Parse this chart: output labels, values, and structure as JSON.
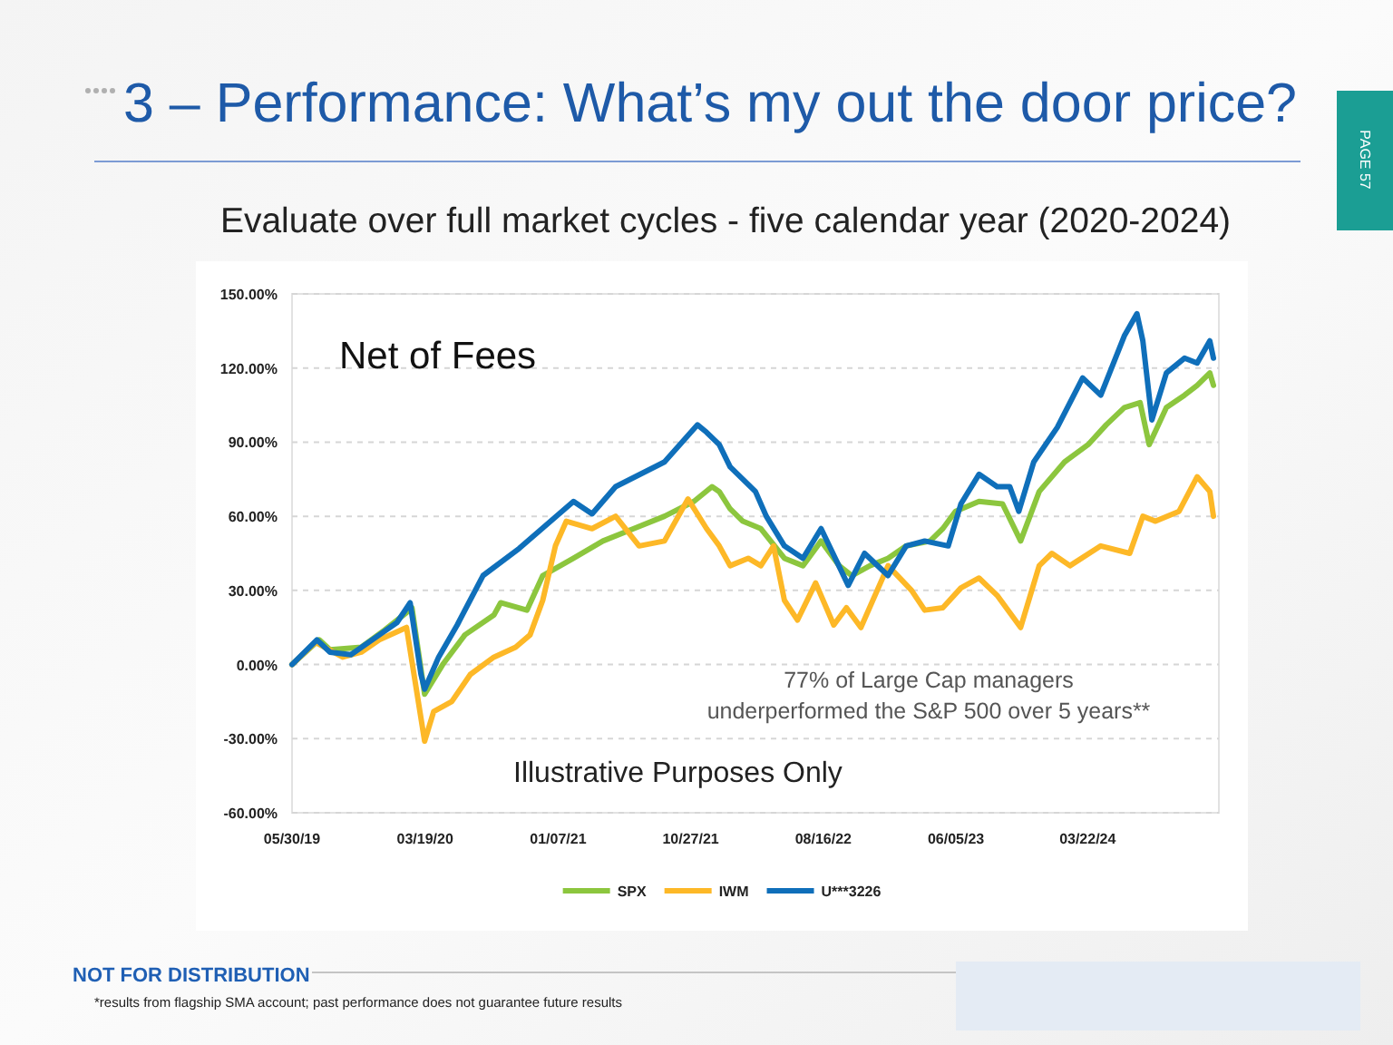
{
  "chart_data": {
    "type": "line",
    "title": "3 – Performance: What’s my out the door price?",
    "subtitle": "Evaluate over full market cycles - five calendar year (2020-2024)",
    "annotations": [
      "Net of Fees",
      "77% of Large Cap managers\nunderperformed the S&P 500 over 5 years**",
      "Illustrative Purposes Only",
      "NOT FOR DISTRIBUTION",
      "*results from flagship SMA account; past performance does not guarantee future results",
      "PAGE 57"
    ],
    "xlim": [
      "2019-05-30",
      "2025-01-06"
    ],
    "xticks": [
      {
        "value": "2019-05-30",
        "label": "05/30/19"
      },
      {
        "value": "2020-03-19",
        "label": "03/19/20"
      },
      {
        "value": "2021-01-07",
        "label": "01/07/21"
      },
      {
        "value": "2021-10-27",
        "label": "10/27/21"
      },
      {
        "value": "2022-08-16",
        "label": "08/16/22"
      },
      {
        "value": "2023-06-05",
        "label": "06/05/23"
      },
      {
        "value": "2024-03-22",
        "label": "03/22/24"
      }
    ],
    "ylim": [
      -60,
      150
    ],
    "yticks": [
      {
        "value": -60,
        "label": "-60.00%"
      },
      {
        "value": -30,
        "label": "-30.00%"
      },
      {
        "value": 0,
        "label": "0.00%"
      },
      {
        "value": 30,
        "label": "30.00%"
      },
      {
        "value": 60,
        "label": "60.00%"
      },
      {
        "value": 90,
        "label": "90.00%"
      },
      {
        "value": 120,
        "label": "120.00%"
      },
      {
        "value": 150,
        "label": "150.00%"
      }
    ],
    "grid": "y",
    "legend": "bottom",
    "series": [
      {
        "name": "SPX",
        "color": "#8cc63e",
        "x": [
          "2019-05-30",
          "2019-07-29",
          "2019-08-22",
          "2019-10-30",
          "2019-12-21",
          "2020-02-07",
          "2020-02-19",
          "2020-03-18",
          "2020-04-27",
          "2020-06-15",
          "2020-08-18",
          "2020-09-02",
          "2020-10-30",
          "2020-12-04",
          "2021-02-10",
          "2021-04-16",
          "2021-06-23",
          "2021-08-30",
          "2021-11-03",
          "2021-12-13",
          "2021-12-29",
          "2022-01-22",
          "2022-02-19",
          "2022-03-31",
          "2022-05-22",
          "2022-07-02",
          "2022-08-11",
          "2022-09-20",
          "2022-10-18",
          "2022-11-27",
          "2023-01-06",
          "2023-02-15",
          "2023-04-09",
          "2023-05-07",
          "2023-06-04",
          "2023-07-26",
          "2023-09-16",
          "2023-10-26",
          "2023-12-06",
          "2024-01-31",
          "2024-03-23",
          "2024-05-02",
          "2024-06-11",
          "2024-07-16",
          "2024-08-05",
          "2024-09-12",
          "2024-10-22",
          "2024-11-19",
          "2024-12-17",
          "2024-12-25"
        ],
        "values": [
          0,
          10,
          6,
          7,
          14,
          21,
          23,
          -12,
          0,
          12,
          20,
          25,
          22,
          36,
          43,
          50,
          55,
          60,
          66,
          72,
          70,
          63,
          58,
          55,
          43,
          40,
          50,
          40,
          36,
          40,
          43,
          48,
          50,
          55,
          62,
          66,
          65,
          50,
          70,
          82,
          89,
          97,
          104,
          106,
          89,
          104,
          109,
          113,
          118,
          113
        ]
      },
      {
        "name": "IWM",
        "color": "#fdb827",
        "x": [
          "2019-05-30",
          "2019-07-21",
          "2019-09-19",
          "2019-10-30",
          "2019-12-09",
          "2020-02-07",
          "2020-03-18",
          "2020-04-07",
          "2020-05-17",
          "2020-06-27",
          "2020-08-18",
          "2020-10-05",
          "2020-11-06",
          "2020-12-04",
          "2021-01-01",
          "2021-01-25",
          "2021-03-23",
          "2021-05-14",
          "2021-07-05",
          "2021-08-30",
          "2021-10-21",
          "2021-12-01",
          "2021-12-29",
          "2022-01-22",
          "2022-03-03",
          "2022-03-31",
          "2022-04-28",
          "2022-05-22",
          "2022-06-20",
          "2022-07-30",
          "2022-09-08",
          "2022-10-06",
          "2022-11-07",
          "2023-01-06",
          "2023-02-27",
          "2023-03-28",
          "2023-05-07",
          "2023-06-16",
          "2023-07-26",
          "2023-09-04",
          "2023-10-26",
          "2023-12-06",
          "2024-01-03",
          "2024-02-12",
          "2024-04-20",
          "2024-06-23",
          "2024-07-22",
          "2024-08-19",
          "2024-10-10",
          "2024-11-19",
          "2024-12-17",
          "2024-12-25"
        ],
        "values": [
          0,
          9,
          3,
          5,
          10,
          15,
          -31,
          -19,
          -15,
          -4,
          3,
          7,
          12,
          26,
          48,
          58,
          55,
          60,
          48,
          50,
          67,
          55,
          48,
          40,
          43,
          40,
          48,
          26,
          18,
          33,
          16,
          23,
          15,
          40,
          30,
          22,
          23,
          31,
          35,
          28,
          15,
          40,
          45,
          40,
          48,
          45,
          60,
          58,
          62,
          76,
          70,
          60
        ]
      },
      {
        "name": "U***3226",
        "color": "#0f6fba",
        "x": [
          "2019-05-30",
          "2019-07-24",
          "2019-08-22",
          "2019-10-07",
          "2019-12-09",
          "2020-01-17",
          "2020-02-15",
          "2020-03-10",
          "2020-03-18",
          "2020-04-18",
          "2020-05-29",
          "2020-07-25",
          "2020-10-13",
          "2021-02-10",
          "2021-03-23",
          "2021-05-14",
          "2021-08-30",
          "2021-11-11",
          "2021-12-01",
          "2021-12-29",
          "2022-01-22",
          "2022-03-19",
          "2022-04-12",
          "2022-05-22",
          "2022-07-02",
          "2022-08-11",
          "2022-10-10",
          "2022-11-15",
          "2023-01-06",
          "2023-02-15",
          "2023-03-28",
          "2023-05-19",
          "2023-06-16",
          "2023-07-26",
          "2023-09-04",
          "2023-10-02",
          "2023-10-22",
          "2023-11-24",
          "2024-01-15",
          "2024-03-11",
          "2024-04-20",
          "2024-06-11",
          "2024-07-09",
          "2024-07-22",
          "2024-08-11",
          "2024-09-12",
          "2024-10-22",
          "2024-11-19",
          "2024-12-17",
          "2024-12-25"
        ],
        "values": [
          0,
          10,
          5,
          4,
          12,
          17,
          25,
          -4,
          -10,
          3,
          16,
          36,
          47,
          66,
          61,
          72,
          82,
          97,
          94,
          89,
          80,
          70,
          60,
          48,
          43,
          55,
          32,
          45,
          36,
          48,
          50,
          48,
          65,
          77,
          72,
          72,
          62,
          82,
          96,
          116,
          109,
          133,
          142,
          131,
          99,
          118,
          124,
          122,
          131,
          124
        ]
      }
    ]
  }
}
